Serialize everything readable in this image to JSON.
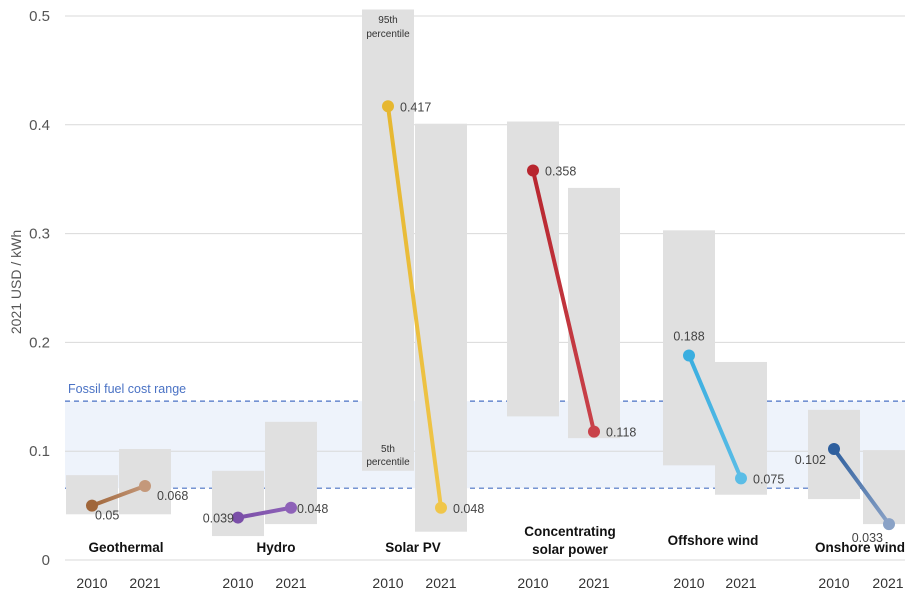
{
  "chart_data": {
    "type": "line",
    "ylabel": "2021 USD / kWh",
    "ylim": [
      0,
      0.5
    ],
    "yticks": [
      {
        "value": 0,
        "label": "0"
      },
      {
        "value": 0.1,
        "label": "0.1"
      },
      {
        "value": 0.2,
        "label": "0.2"
      },
      {
        "value": 0.3,
        "label": "0.3"
      },
      {
        "value": 0.4,
        "label": "0.4"
      },
      {
        "value": 0.5,
        "label": "0.5"
      }
    ],
    "grid": true,
    "fossil_fuel_range": {
      "label": "Fossil fuel cost range",
      "low": 0.066,
      "high": 0.146,
      "color": "#4a72c4"
    },
    "percentile_labels": {
      "high": "95th percentile",
      "low": "5th percentile"
    },
    "range_color": "#e0e0e0",
    "technologies": [
      {
        "name": "Geothermal",
        "color": "#a0663a",
        "color2": "#c4987a",
        "years": [
          "2010",
          "2021"
        ],
        "values": [
          0.05,
          0.068
        ],
        "labels": [
          "0.05",
          "0.068"
        ],
        "ranges": [
          [
            0.042,
            0.078
          ],
          [
            0.042,
            0.102
          ]
        ]
      },
      {
        "name": "Hydro",
        "color": "#7b4fa8",
        "color2": "#8e62b8",
        "years": [
          "2010",
          "2021"
        ],
        "values": [
          0.039,
          0.048
        ],
        "labels": [
          "0.039",
          "0.048"
        ],
        "ranges": [
          [
            0.022,
            0.082
          ],
          [
            0.033,
            0.127
          ]
        ]
      },
      {
        "name": "Solar PV",
        "color": "#e6b730",
        "color2": "#f0c64a",
        "years": [
          "2010",
          "2021"
        ],
        "values": [
          0.417,
          0.048
        ],
        "labels": [
          "0.417",
          "0.048"
        ],
        "ranges": [
          [
            0.082,
            0.506
          ],
          [
            0.026,
            0.401
          ]
        ]
      },
      {
        "name": "Concentrating solar power",
        "color": "#b8262f",
        "color2": "#c9424a",
        "years": [
          "2010",
          "2021"
        ],
        "values": [
          0.358,
          0.118
        ],
        "labels": [
          "0.358",
          "0.118"
        ],
        "ranges": [
          [
            0.132,
            0.403
          ],
          [
            0.112,
            0.342
          ]
        ]
      },
      {
        "name": "Offshore wind",
        "color": "#3aaee0",
        "color2": "#5bbde6",
        "years": [
          "2010",
          "2021"
        ],
        "values": [
          0.188,
          0.075
        ],
        "labels": [
          "0.188",
          "0.075"
        ],
        "ranges": [
          [
            0.087,
            0.303
          ],
          [
            0.06,
            0.182
          ]
        ]
      },
      {
        "name": "Onshore wind",
        "color": "#2e5f9e",
        "color2": "#8aa2c6",
        "years": [
          "2010",
          "2021"
        ],
        "values": [
          0.102,
          0.033
        ],
        "labels": [
          "0.102",
          "0.033"
        ],
        "ranges": [
          [
            0.056,
            0.138
          ],
          [
            0.033,
            0.101
          ]
        ]
      }
    ]
  }
}
